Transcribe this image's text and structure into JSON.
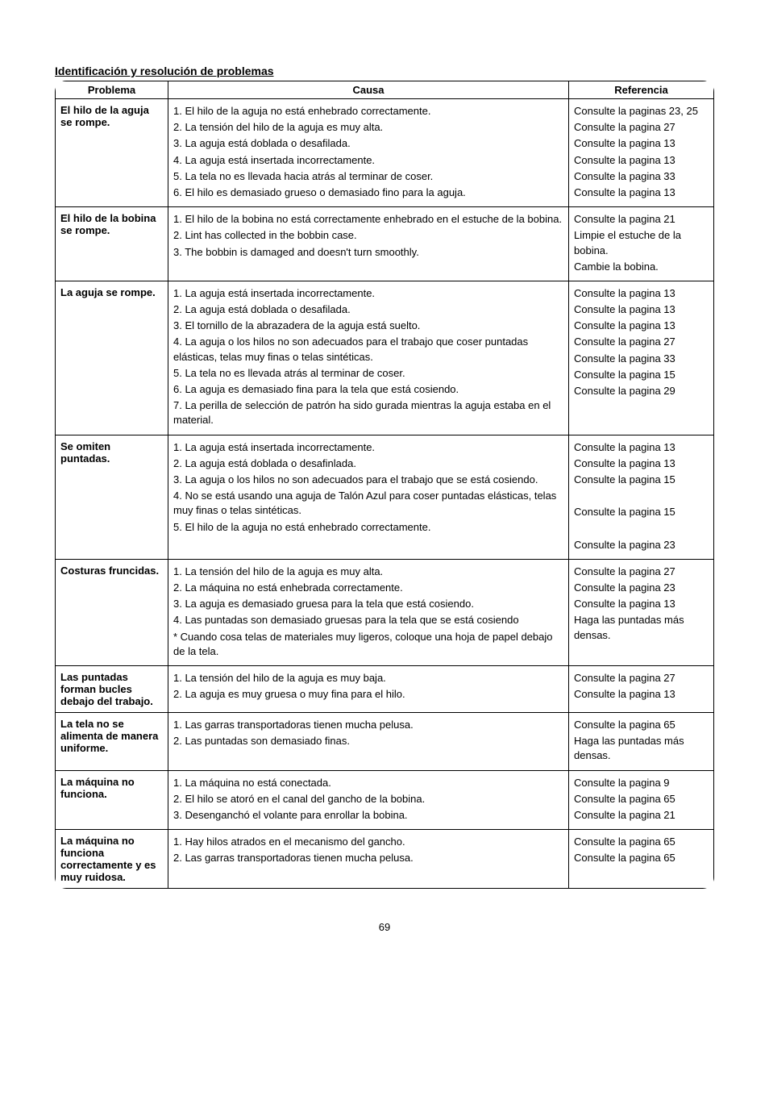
{
  "title": "Identificación y resolución de problemas",
  "headers": {
    "problema": "Problema",
    "causa": "Causa",
    "referencia": "Referencia"
  },
  "rows": [
    {
      "problema": "El hilo de la aguja se rompe.",
      "causas": [
        "1. El hilo de la aguja no está enhebrado correctamente.",
        "2. La tensión del hilo de la aguja es muy alta.",
        "3. La aguja está doblada o desafilada.",
        "4. La aguja está insertada incorrectamente.",
        "5. La tela no es llevada hacia atrás al terminar de coser.",
        "6. El hilo es demasiado grueso o demasiado fino para la aguja."
      ],
      "refs": [
        "Consulte la paginas 23, 25",
        "Consulte la pagina 27",
        "Consulte la pagina 13",
        "Consulte la pagina 13",
        "Consulte la pagina 33",
        "Consulte la pagina 13"
      ]
    },
    {
      "problema": "El hilo de la bobina se rompe.",
      "causas": [
        "1. El hilo de la bobina no está correctamente enhebrado en el estuche de la bobina.",
        "2. Lint has collected in the bobbin case.",
        "3. The bobbin is damaged and doesn't turn smoothly."
      ],
      "refs": [
        "Consulte la pagina 21",
        "Limpie el estuche de la bobina.",
        "Cambie la bobina."
      ]
    },
    {
      "problema": "La aguja se rompe.",
      "causas": [
        "1. La aguja está insertada incorrectamente.",
        "2. La aguja está doblada o desafilada.",
        "3. El tornillo de la abrazadera de la aguja está suelto.",
        "4. La aguja o los hilos no son adecuados para el trabajo que coser puntadas elásticas, telas muy finas o telas sintéticas.",
        "5. La tela no es llevada atrás al terminar de coser.",
        "6. La aguja es demasiado fina para la tela que está cosiendo.",
        "7. La perilla de selección de patrón ha sido gurada mientras la aguja estaba en el material."
      ],
      "refs": [
        "Consulte la pagina 13",
        "Consulte la pagina 13",
        "Consulte la pagina 13",
        "Consulte la pagina 27",
        "Consulte la pagina 33",
        "Consulte la pagina 15",
        "Consulte la pagina 29"
      ]
    },
    {
      "problema": "Se omiten puntadas.",
      "causas": [
        "1. La aguja está insertada incorrectamente.",
        "2. La aguja está doblada o desafinlada.",
        "3. La aguja o los hilos no son adecuados para el trabajo que se está cosiendo.",
        "4. No se está usando una aguja de Talón Azul para coser puntadas elásticas, telas muy finas o telas sintéticas.",
        "5. El hilo de la aguja no está enhebrado correctamente."
      ],
      "refs": [
        "Consulte la pagina 13",
        "Consulte la pagina 13",
        "Consulte la pagina 15",
        "",
        "Consulte la pagina 15",
        "",
        "Consulte la pagina 23"
      ]
    },
    {
      "problema": "Costuras fruncidas.",
      "causas": [
        "1. La tensión del hilo de la aguja es muy alta.",
        "2. La máquina no está enhebrada correctamente.",
        "3. La aguja es demasiado gruesa para la tela que está cosiendo.",
        "4. Las puntadas son demasiado gruesas para la tela que se está cosiendo",
        "*  Cuando cosa telas de materiales muy ligeros, coloque una hoja de papel debajo de la tela."
      ],
      "refs": [
        "Consulte la pagina 27",
        "Consulte la pagina 23",
        "Consulte la pagina 13",
        "Haga las puntadas más densas."
      ]
    },
    {
      "problema": "Las puntadas forman bucles debajo del trabajo.",
      "causas": [
        "1. La tensión del hilo de la aguja es muy baja.",
        "2. La aguja es muy gruesa o muy fina para el hilo."
      ],
      "refs": [
        "Consulte la pagina 27",
        "Consulte la pagina 13"
      ]
    },
    {
      "problema": "La tela no se alimenta de manera uniforme.",
      "causas": [
        "1. Las garras transportadoras tienen mucha pelusa.",
        "2. Las puntadas son demasiado finas."
      ],
      "refs": [
        "Consulte la pagina 65",
        "Haga las puntadas más densas."
      ]
    },
    {
      "problema": "La máquina no funciona.",
      "causas": [
        "1. La máquina no está conectada.",
        "2. El hilo se atoró en el canal del gancho de la bobina.",
        "3. Desenganchó el volante para enrollar la bobina."
      ],
      "refs": [
        "Consulte la pagina 9",
        "Consulte la pagina 65",
        "Consulte la pagina 21"
      ]
    },
    {
      "problema": "La máquina no funciona correctamente y es muy ruidosa.",
      "causas": [
        "1. Hay hilos atrados en el mecanismo del gancho.",
        "2. Las garras transportadoras tienen mucha pelusa."
      ],
      "refs": [
        "Consulte la pagina 65",
        "Consulte la pagina 65"
      ]
    }
  ],
  "page_number": "69"
}
